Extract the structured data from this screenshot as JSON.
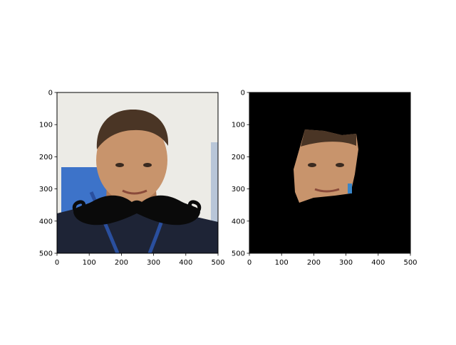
{
  "chart_data": [
    {
      "type": "image",
      "title": "",
      "xlabel": "",
      "ylabel": "",
      "xlim": [
        0,
        500
      ],
      "ylim": [
        500,
        0
      ],
      "x_ticks": [
        "0",
        "100",
        "200",
        "300",
        "400",
        "500"
      ],
      "y_ticks": [
        "0",
        "100",
        "200",
        "300",
        "400",
        "500"
      ],
      "grid": false,
      "content": "photo of a face with a black mustache overlay",
      "colors": {
        "background": "#ecebe6",
        "mustache": "#0a0a0a",
        "skin": "#c8946c",
        "hair": "#4a3525",
        "shirt": "#1e2436",
        "blue_panel": "#3d73c9"
      }
    },
    {
      "type": "image",
      "title": "",
      "xlabel": "",
      "ylabel": "",
      "xlim": [
        0,
        500
      ],
      "ylim": [
        500,
        0
      ],
      "x_ticks": [
        "0",
        "100",
        "200",
        "300",
        "400",
        "500"
      ],
      "y_ticks": [
        "0",
        "100",
        "200",
        "300",
        "400",
        "500"
      ],
      "grid": false,
      "content": "segmented face region on black background",
      "colors": {
        "background": "#000000",
        "skin": "#c8946c",
        "hair": "#4a3525"
      }
    }
  ]
}
